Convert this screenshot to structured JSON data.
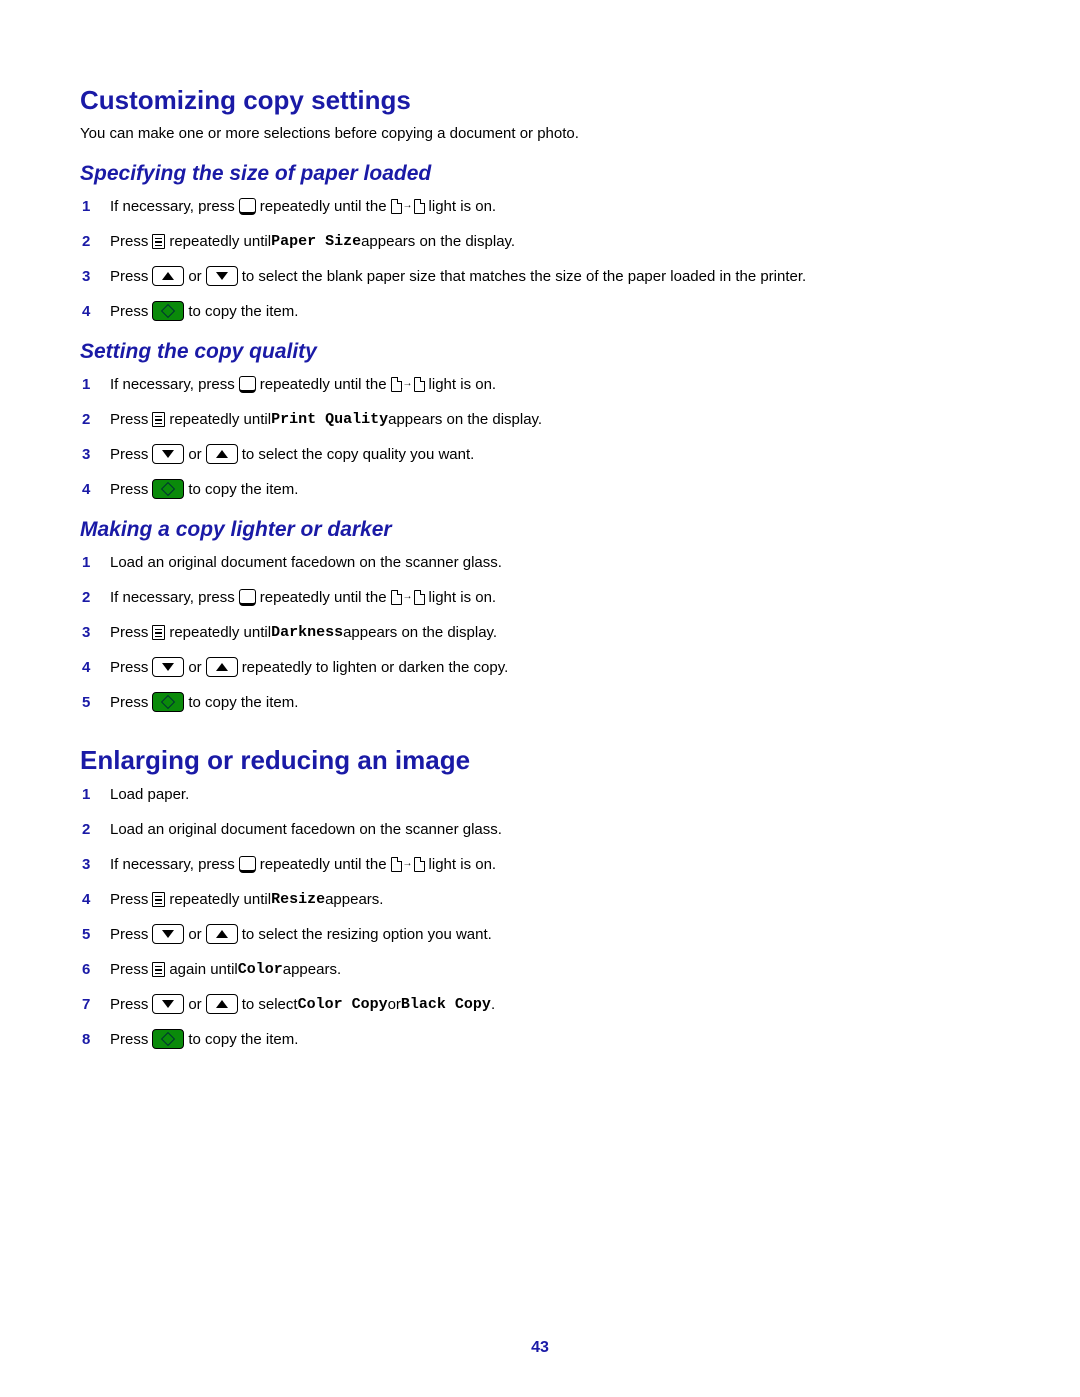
{
  "colors": {
    "heading": "#1a1aa6",
    "text": "#000000",
    "green_btn": "#0a8a0a",
    "background": "#ffffff"
  },
  "page_number": "43",
  "section1": {
    "title": "Customizing copy settings",
    "intro": "You can make one or more selections before copying a document or photo.",
    "sub_a": {
      "title": "Specifying the size of paper loaded",
      "steps": {
        "s1a": "If necessary, press ",
        "s1b": " repeatedly until the ",
        "s1c": " light is on.",
        "s2a": "Press ",
        "s2b": " repeatedly until ",
        "s2_code": "Paper Size",
        "s2c": " appears on the display.",
        "s3a": "Press ",
        "s3_or": " or ",
        "s3b": " to select the blank paper size that matches the size of the paper loaded in the printer.",
        "s4a": "Press ",
        "s4b": " to copy the item."
      }
    },
    "sub_b": {
      "title": "Setting the copy quality",
      "steps": {
        "s1a": "If necessary, press ",
        "s1b": " repeatedly until the ",
        "s1c": " light is on.",
        "s2a": "Press ",
        "s2b": " repeatedly until ",
        "s2_code": "Print Quality",
        "s2c": " appears on the display.",
        "s3a": "Press ",
        "s3_or": " or ",
        "s3b": " to select the copy quality you want.",
        "s4a": "Press ",
        "s4b": " to copy the item."
      }
    },
    "sub_c": {
      "title": "Making a copy lighter or darker",
      "steps": {
        "s1": "Load an original document facedown on the scanner glass.",
        "s2a": "If necessary, press ",
        "s2b": " repeatedly until the ",
        "s2c": " light is on.",
        "s3a": "Press ",
        "s3b": " repeatedly until ",
        "s3_code": "Darkness",
        "s3c": " appears on the display.",
        "s4a": "Press ",
        "s4_or": " or ",
        "s4b": " repeatedly to lighten or darken the copy.",
        "s5a": "Press ",
        "s5b": " to copy the item."
      }
    }
  },
  "section2": {
    "title": "Enlarging or reducing an image",
    "steps": {
      "s1": "Load paper.",
      "s2": "Load an original document facedown on the scanner glass.",
      "s3a": "If necessary, press ",
      "s3b": " repeatedly until the ",
      "s3c": " light is on.",
      "s4a": "Press ",
      "s4b": " repeatedly until ",
      "s4_code": "Resize",
      "s4c": " appears.",
      "s5a": "Press ",
      "s5_or": " or ",
      "s5b": " to select the resizing option you want.",
      "s6a": "Press ",
      "s6b": " again until ",
      "s6_code": "Color",
      "s6c": " appears.",
      "s7a": "Press ",
      "s7_or": " or ",
      "s7b": " to select ",
      "s7_code1": "Color Copy",
      "s7_mid": " or ",
      "s7_code2": "Black Copy",
      "s7c": ".",
      "s8a": "Press ",
      "s8b": " to copy the item."
    }
  }
}
